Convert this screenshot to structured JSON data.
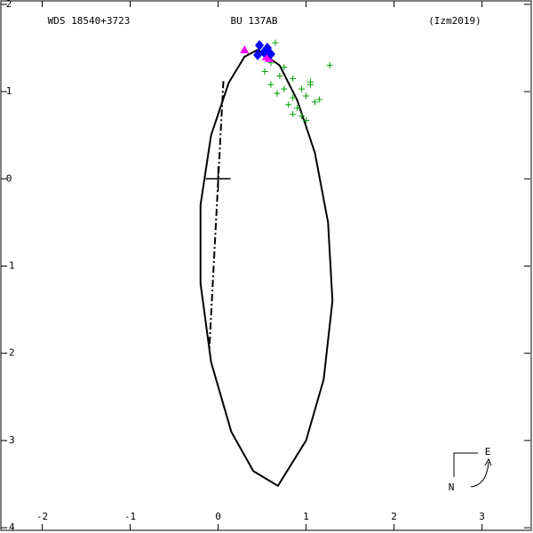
{
  "chart_data": {
    "type": "orbit",
    "title": "WDS 18540+3723",
    "subtitle": "BU  137AB",
    "reference": "(Izm2019)",
    "compass": {
      "east": "E",
      "north": "N"
    },
    "xlim": [
      -2.48,
      3.56
    ],
    "ylim": [
      -4.04,
      2.05
    ],
    "xticks": [
      -2,
      -1,
      0,
      1,
      2,
      3
    ],
    "yticks": [
      2,
      1,
      0,
      -1,
      -2,
      -3,
      -4
    ],
    "series": [
      {
        "color": "#000000",
        "marker": "none",
        "dash": "solid",
        "x": [
          0.45,
          0.7,
          0.9,
          1.1,
          1.25,
          1.3,
          1.2,
          1.0,
          0.68,
          0.4,
          0.15,
          -0.08,
          -0.2,
          -0.2,
          -0.08,
          0.12,
          0.3,
          0.45
        ],
        "y": [
          1.48,
          1.3,
          0.9,
          0.3,
          -0.5,
          -1.4,
          -2.3,
          -3.0,
          -3.52,
          -3.35,
          -2.9,
          -2.1,
          -1.2,
          -0.3,
          0.5,
          1.1,
          1.4,
          1.48
        ]
      },
      {
        "color": "#000000",
        "marker": "none",
        "dash": "dashdot",
        "x": [
          0.06,
          -0.1
        ],
        "y": [
          1.12,
          -1.95
        ]
      },
      {
        "color": "#00a000",
        "marker": "plus",
        "dash": "none",
        "x": [
          0.65,
          0.55,
          0.6,
          0.75,
          1.27,
          0.53,
          0.7,
          0.85,
          1.05,
          0.6,
          0.75,
          0.95,
          0.67,
          0.85,
          1.0,
          0.8,
          0.9,
          1.1,
          0.95,
          0.85,
          1.0,
          1.15,
          1.05
        ],
        "y": [
          1.56,
          1.41,
          1.33,
          1.28,
          1.3,
          1.23,
          1.18,
          1.15,
          1.11,
          1.08,
          1.03,
          1.03,
          0.98,
          0.93,
          0.95,
          0.85,
          0.81,
          0.88,
          0.72,
          0.74,
          0.67,
          0.91,
          1.08
        ]
      },
      {
        "color": "#ff00ff",
        "marker": "triangle",
        "dash": "none",
        "x": [
          0.3,
          0.55,
          0.58
        ],
        "y": [
          1.48,
          1.4,
          1.38
        ]
      },
      {
        "color": "#0000ff",
        "marker": "diamond",
        "dash": "none",
        "x": [
          0.47,
          0.52,
          0.6,
          0.45,
          0.56
        ],
        "y": [
          1.53,
          1.45,
          1.43,
          1.42,
          1.5
        ]
      }
    ]
  }
}
